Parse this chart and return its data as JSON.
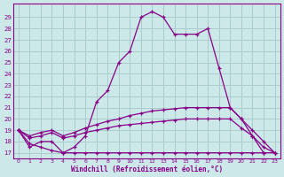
{
  "bg_color": "#cce8e8",
  "grid_color": "#aacccc",
  "line_color": "#880088",
  "xlabel": "Windchill (Refroidissement éolien,°C)",
  "x_ticks": [
    0,
    1,
    2,
    3,
    4,
    5,
    6,
    7,
    8,
    9,
    10,
    11,
    12,
    13,
    14,
    15,
    16,
    17,
    18,
    19,
    20,
    21,
    22,
    23
  ],
  "y_ticks": [
    17,
    18,
    19,
    20,
    21,
    22,
    23,
    24,
    25,
    26,
    27,
    28,
    29
  ],
  "ylim": [
    16.5,
    30.2
  ],
  "xlim": [
    -0.5,
    23.5
  ],
  "curve1_x": [
    0,
    1,
    2,
    3,
    4,
    5,
    6,
    7,
    8,
    9,
    10,
    11,
    12,
    13,
    14,
    15,
    16,
    17,
    18,
    19,
    20,
    21,
    22
  ],
  "curve1_y": [
    19.0,
    17.5,
    18.0,
    18.0,
    17.0,
    17.5,
    18.5,
    21.5,
    22.5,
    25.0,
    26.0,
    29.0,
    29.5,
    29.0,
    27.5,
    27.5,
    27.5,
    28.0,
    24.5,
    21.0,
    20.0,
    18.5,
    17.0
  ],
  "curve2_x": [
    0,
    1,
    2,
    3,
    4,
    5,
    6,
    7,
    8,
    9,
    10,
    11,
    12,
    13,
    14,
    15,
    16,
    17,
    18,
    19,
    20,
    21,
    22,
    23
  ],
  "curve2_y": [
    19.0,
    18.5,
    18.8,
    19.0,
    18.5,
    18.8,
    19.2,
    19.5,
    19.8,
    20.0,
    20.3,
    20.5,
    20.7,
    20.8,
    20.9,
    21.0,
    21.0,
    21.0,
    21.0,
    21.0,
    20.0,
    19.0,
    18.0,
    17.0
  ],
  "curve3_x": [
    0,
    1,
    2,
    3,
    4,
    5,
    6,
    7,
    8,
    9,
    10,
    11,
    12,
    13,
    14,
    15,
    16,
    17,
    18,
    19,
    20,
    21,
    22,
    23
  ],
  "curve3_y": [
    19.0,
    18.3,
    18.5,
    18.8,
    18.3,
    18.5,
    18.8,
    19.0,
    19.2,
    19.4,
    19.5,
    19.6,
    19.7,
    19.8,
    19.9,
    20.0,
    20.0,
    20.0,
    20.0,
    20.0,
    19.2,
    18.5,
    17.5,
    17.0
  ],
  "curve4_x": [
    0,
    1,
    2,
    3,
    4,
    5,
    6,
    7,
    8,
    9,
    10,
    11,
    12,
    13,
    14,
    15,
    16,
    17,
    18,
    19,
    20,
    21,
    22,
    23
  ],
  "curve4_y": [
    19.0,
    17.8,
    17.5,
    17.2,
    17.0,
    17.0,
    17.0,
    17.0,
    17.0,
    17.0,
    17.0,
    17.0,
    17.0,
    17.0,
    17.0,
    17.0,
    17.0,
    17.0,
    17.0,
    17.0,
    17.0,
    17.0,
    17.0,
    17.0
  ]
}
